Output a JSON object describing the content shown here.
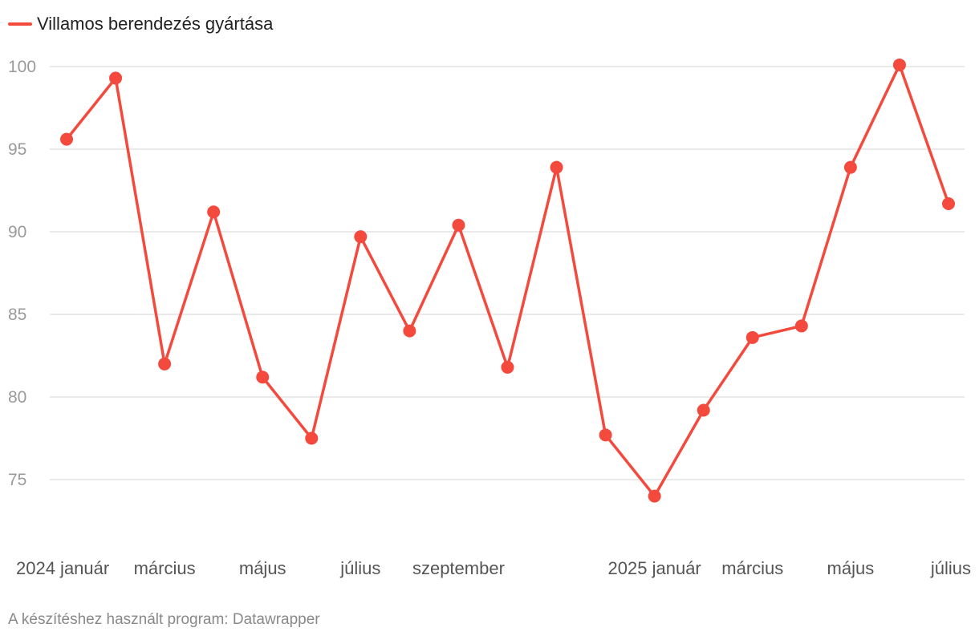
{
  "legend": {
    "label": "Villamos berendezés gyártása"
  },
  "footer": {
    "text": "A készítéshez használt program: Datawrapper"
  },
  "colors": {
    "series": "#f44a3e",
    "grid": "#dddddd"
  },
  "chart_data": {
    "type": "line",
    "title": "",
    "xlabel": "",
    "ylabel": "",
    "ylim": [
      70,
      101
    ],
    "yticks": [
      75,
      80,
      85,
      90,
      95,
      100
    ],
    "grid": true,
    "legend_position": "top-left",
    "x": [
      "2024-01",
      "2024-02",
      "2024-03",
      "2024-04",
      "2024-05",
      "2024-06",
      "2024-07",
      "2024-08",
      "2024-09",
      "2024-10",
      "2024-11",
      "2024-12",
      "2025-01",
      "2025-02",
      "2025-03",
      "2025-04",
      "2025-05",
      "2025-06",
      "2025-07"
    ],
    "x_tick_labels": [
      {
        "index": 0,
        "label": "2024 január"
      },
      {
        "index": 2,
        "label": "március"
      },
      {
        "index": 4,
        "label": "május"
      },
      {
        "index": 6,
        "label": "július"
      },
      {
        "index": 8,
        "label": "szeptember"
      },
      {
        "index": 12,
        "label": "2025 január"
      },
      {
        "index": 14,
        "label": "március"
      },
      {
        "index": 16,
        "label": "május"
      },
      {
        "index": 18,
        "label": "július"
      }
    ],
    "series": [
      {
        "name": "Villamos berendezés gyártása",
        "values": [
          95.6,
          99.3,
          82.0,
          91.2,
          81.2,
          77.5,
          89.7,
          84.0,
          90.4,
          81.8,
          93.9,
          77.7,
          74.0,
          79.2,
          83.6,
          84.3,
          93.9,
          100.1,
          91.7
        ]
      }
    ]
  }
}
